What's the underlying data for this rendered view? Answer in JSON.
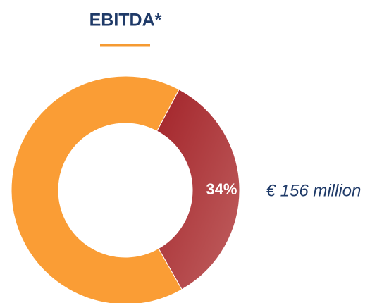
{
  "chart_data": {
    "type": "donut",
    "title": "EBITDA*",
    "values": [
      34,
      66
    ],
    "value_labels": [
      "34%",
      null
    ],
    "colors": [
      "#a8282e",
      "#fa9d35"
    ],
    "annotation": "€ 156 million"
  }
}
